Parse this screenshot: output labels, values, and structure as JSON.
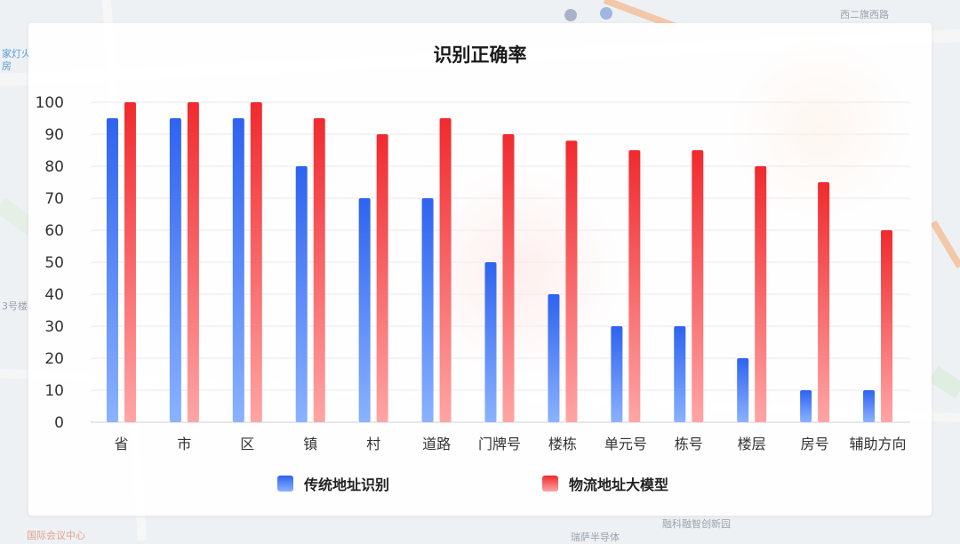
{
  "map_labels": [
    "西二旗西路",
    "家灯火",
    "房",
    "3号楼",
    "国际会议中心",
    "瑞萨半导体",
    "融科融智创新园"
  ],
  "chart_data": {
    "type": "bar",
    "title": "识别正确率",
    "xlabel": "",
    "ylabel": "",
    "ylim": [
      0,
      100
    ],
    "yticks": [
      0,
      10,
      20,
      30,
      40,
      50,
      60,
      70,
      80,
      90,
      100
    ],
    "grid": true,
    "legend_position": "bottom",
    "categories": [
      "省",
      "市",
      "区",
      "镇",
      "村",
      "道路",
      "门牌号",
      "楼栋",
      "单元号",
      "栋号",
      "楼层",
      "房号",
      "辅助方向"
    ],
    "series": [
      {
        "name": "传统地址识别",
        "color": "#3a6ff0",
        "values": [
          95,
          95,
          95,
          80,
          70,
          70,
          50,
          40,
          30,
          30,
          20,
          10,
          10
        ]
      },
      {
        "name": "物流地址大模型",
        "color": "#f03a3a",
        "values": [
          100,
          100,
          100,
          95,
          90,
          95,
          90,
          88,
          85,
          85,
          80,
          75,
          60
        ]
      }
    ]
  }
}
